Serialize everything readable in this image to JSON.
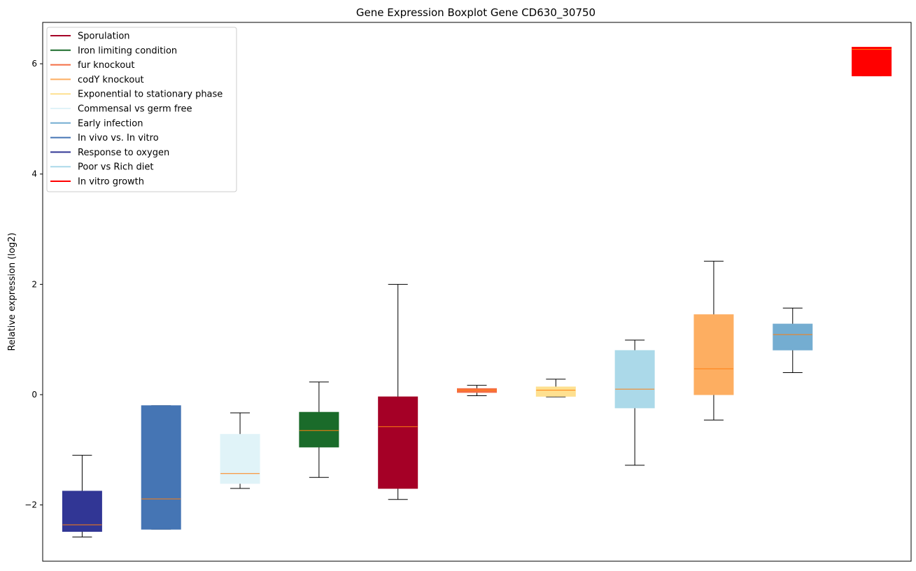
{
  "chart_data": {
    "type": "box",
    "title": "Gene Expression Boxplot Gene CD630_30750",
    "xlabel": "",
    "ylabel": "Relative expression (log2)",
    "ylim": [
      -3.02,
      6.75
    ],
    "xlim": [
      0.5,
      11.5
    ],
    "yticks": [
      -2,
      0,
      2,
      4,
      6
    ],
    "ytick_labels": [
      "−2",
      "0",
      "2",
      "4",
      "6"
    ],
    "grid": false,
    "legend_position": "top-left",
    "legend": [
      {
        "label": "Sporulation",
        "color": "#a50026"
      },
      {
        "label": "Iron limiting condition",
        "color": "#1a6b2a"
      },
      {
        "label": "fur knockout",
        "color": "#f46d43"
      },
      {
        "label": "codY knockout",
        "color": "#fdae61"
      },
      {
        "label": "Exponential to stationary phase",
        "color": "#fee090"
      },
      {
        "label": "Commensal vs germ free",
        "color": "#e0f3f8"
      },
      {
        "label": "Early infection",
        "color": "#74add1"
      },
      {
        "label": "In vivo vs. In vitro",
        "color": "#4575b4"
      },
      {
        "label": "Response to oxygen",
        "color": "#313695"
      },
      {
        "label": "Poor vs Rich diet",
        "color": "#abd9e9"
      },
      {
        "label": "In vitro growth",
        "color": "#ff0000"
      }
    ],
    "median_color": "#ff7f0e",
    "boxes": [
      {
        "name": "Response to oxygen",
        "color": "#313695",
        "whislo": -2.58,
        "q1": -2.48,
        "med": -2.36,
        "q3": -1.75,
        "whishi": -1.1
      },
      {
        "name": "In vivo vs. In vitro",
        "color": "#4575b4",
        "whislo": -2.44,
        "q1": -2.44,
        "med": -1.89,
        "q3": -0.2,
        "whishi": -0.2
      },
      {
        "name": "Commensal vs germ free",
        "color": "#e0f3f8",
        "whislo": -1.7,
        "q1": -1.61,
        "med": -1.43,
        "q3": -0.72,
        "whishi": -0.33
      },
      {
        "name": "Iron limiting condition",
        "color": "#1a6b2a",
        "whislo": -1.5,
        "q1": -0.95,
        "med": -0.65,
        "q3": -0.32,
        "whishi": 0.23
      },
      {
        "name": "Sporulation",
        "color": "#a50026",
        "whislo": -1.9,
        "q1": -1.7,
        "med": -0.58,
        "q3": -0.04,
        "whishi": 2.0
      },
      {
        "name": "fur knockout",
        "color": "#f46d43",
        "whislo": -0.02,
        "q1": 0.04,
        "med": 0.08,
        "q3": 0.11,
        "whishi": 0.17
      },
      {
        "name": "Exponential to stationary phase",
        "color": "#fee090",
        "whislo": -0.04,
        "q1": -0.03,
        "med": 0.08,
        "q3": 0.14,
        "whishi": 0.28
      },
      {
        "name": "Poor vs Rich diet",
        "color": "#abd9e9",
        "whislo": -1.28,
        "q1": -0.24,
        "med": 0.1,
        "q3": 0.8,
        "whishi": 0.99
      },
      {
        "name": "codY knockout",
        "color": "#fdae61",
        "whislo": -0.46,
        "q1": 0.0,
        "med": 0.47,
        "q3": 1.45,
        "whishi": 2.42
      },
      {
        "name": "Early infection",
        "color": "#74add1",
        "whislo": 0.4,
        "q1": 0.81,
        "med": 1.09,
        "q3": 1.28,
        "whishi": 1.57
      },
      {
        "name": "In vitro growth",
        "color": "#ff0000",
        "whislo": 5.78,
        "q1": 5.78,
        "med": 6.26,
        "q3": 6.3,
        "whishi": 6.3
      }
    ]
  }
}
